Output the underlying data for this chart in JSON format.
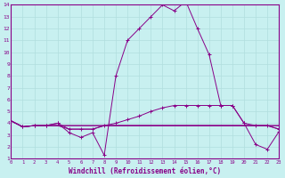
{
  "xlabel": "Windchill (Refroidissement éolien,°C)",
  "background_color": "#c8f0f0",
  "line_color": "#880088",
  "grid_color": "#b0dede",
  "xmin": 0,
  "xmax": 23,
  "ymin": 1,
  "ymax": 14,
  "series": [
    {
      "x": [
        0,
        1,
        2,
        3,
        4,
        5,
        6,
        7,
        8,
        9,
        10,
        11,
        12,
        13,
        14,
        15,
        16,
        17,
        18,
        19,
        20,
        21,
        22,
        23
      ],
      "y": [
        4.2,
        3.7,
        3.8,
        3.8,
        4.0,
        3.2,
        2.8,
        3.2,
        1.3,
        8.0,
        11.0,
        12.0,
        13.0,
        14.0,
        13.5,
        14.3,
        12.0,
        9.8,
        5.5,
        5.5,
        4.0,
        2.2,
        1.8,
        3.3
      ],
      "marker": true
    },
    {
      "x": [
        0,
        1,
        2,
        3,
        4,
        5,
        6,
        7,
        8,
        9,
        10,
        11,
        12,
        13,
        14,
        15,
        16,
        17,
        18,
        19,
        20,
        21,
        22,
        23
      ],
      "y": [
        4.2,
        3.7,
        3.8,
        3.8,
        4.0,
        3.5,
        3.5,
        3.5,
        3.8,
        4.0,
        4.3,
        4.6,
        5.0,
        5.3,
        5.5,
        5.5,
        5.5,
        5.5,
        5.5,
        5.5,
        4.0,
        3.8,
        3.8,
        3.5
      ],
      "marker": true
    },
    {
      "x": [
        0,
        1,
        2,
        3,
        4,
        5,
        6,
        7,
        8,
        9,
        10,
        11,
        12,
        13,
        14,
        15,
        16,
        17,
        18,
        19,
        20,
        21,
        22,
        23
      ],
      "y": [
        4.2,
        3.7,
        3.8,
        3.8,
        3.8,
        3.8,
        3.8,
        3.8,
        3.8,
        3.8,
        3.8,
        3.8,
        3.8,
        3.8,
        3.8,
        3.8,
        3.8,
        3.8,
        3.8,
        3.8,
        3.8,
        3.8,
        3.8,
        3.8
      ],
      "marker": false
    },
    {
      "x": [
        0,
        1,
        2,
        3,
        4,
        5,
        6,
        7,
        8,
        9,
        10,
        11,
        12,
        13,
        14,
        15,
        16,
        17,
        18,
        19,
        20,
        21,
        22,
        23
      ],
      "y": [
        4.2,
        3.7,
        3.8,
        3.8,
        3.8,
        3.8,
        3.8,
        3.8,
        3.8,
        3.8,
        3.8,
        3.8,
        3.8,
        3.8,
        3.8,
        3.8,
        3.8,
        3.8,
        3.8,
        3.8,
        3.8,
        3.8,
        3.8,
        3.8
      ],
      "marker": false
    },
    {
      "x": [
        0,
        1,
        2,
        3,
        4,
        5,
        6,
        7,
        8,
        9,
        10,
        11,
        12,
        13,
        14,
        15,
        16,
        17,
        18,
        19,
        20,
        21,
        22,
        23
      ],
      "y": [
        4.2,
        3.7,
        3.8,
        3.8,
        3.8,
        3.5,
        3.5,
        3.5,
        3.8,
        3.8,
        3.8,
        3.8,
        3.8,
        3.8,
        3.8,
        3.8,
        3.8,
        3.8,
        3.8,
        3.8,
        3.8,
        3.8,
        3.8,
        3.5
      ],
      "marker": false
    }
  ]
}
